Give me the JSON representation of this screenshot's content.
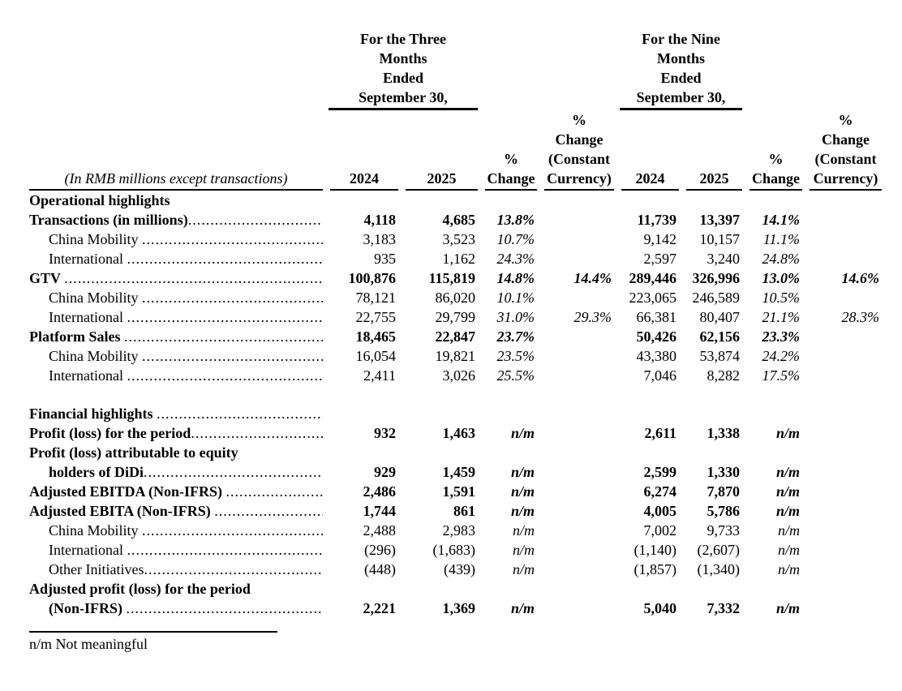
{
  "document": {
    "unit_note": "(In RMB millions except transactions)",
    "footnote": "n/m Not meaningful"
  },
  "table": {
    "group_headers": [
      {
        "lines": [
          "For the Three",
          "Months",
          "Ended",
          "September 30,"
        ]
      },
      {
        "lines": [
          "For the Nine",
          "Months",
          "Ended",
          "September 30,"
        ]
      }
    ],
    "value_col_keys": [
      "3m-2024",
      "3m-2025",
      "3m-pct-change",
      "3m-pct-change-constant-currency",
      "9m-2024",
      "9m-2025",
      "9m-pct-change",
      "9m-pct-change-constant-currency"
    ],
    "columns": [
      {
        "key": "3m-2024",
        "lines": [
          "2024"
        ]
      },
      {
        "key": "3m-2025",
        "lines": [
          "2025"
        ]
      },
      {
        "key": "3m-pct-change",
        "lines": [
          "%",
          "Change"
        ]
      },
      {
        "key": "3m-pct-change-constant-currency",
        "lines": [
          "%",
          "Change",
          "(Constant",
          "Currency)"
        ]
      },
      {
        "key": "9m-2024",
        "lines": [
          "2024"
        ]
      },
      {
        "key": "9m-2025",
        "lines": [
          "2025"
        ]
      },
      {
        "key": "9m-pct-change",
        "lines": [
          "%",
          "Change"
        ]
      },
      {
        "key": "9m-pct-change-constant-currency",
        "lines": [
          "%",
          "Change",
          "(Constant",
          "Currency)"
        ]
      }
    ],
    "rows": [
      {
        "label": "Operational highlights",
        "bold": true,
        "indent": 0,
        "dots": false,
        "values": [
          "",
          "",
          "",
          "",
          "",
          "",
          "",
          ""
        ]
      },
      {
        "label": "Transactions (in millions)",
        "bold": true,
        "indent": 0,
        "dots": true,
        "values": [
          "4,118",
          "4,685",
          "13.8%",
          "",
          "11,739",
          "13,397",
          "14.1%",
          ""
        ]
      },
      {
        "label": "China Mobility ",
        "bold": false,
        "indent": 1,
        "dots": true,
        "values": [
          "3,183",
          "3,523",
          "10.7%",
          "",
          "9,142",
          "10,157",
          "11.1%",
          ""
        ]
      },
      {
        "label": "International ",
        "bold": false,
        "indent": 1,
        "dots": true,
        "values": [
          "935",
          "1,162",
          "24.3%",
          "",
          "2,597",
          "3,240",
          "24.8%",
          ""
        ]
      },
      {
        "label": "GTV ",
        "bold": true,
        "indent": 0,
        "dots": true,
        "values": [
          "100,876",
          "115,819",
          "14.8%",
          "14.4%",
          "289,446",
          "326,996",
          "13.0%",
          "14.6%"
        ]
      },
      {
        "label": "China Mobility ",
        "bold": false,
        "indent": 1,
        "dots": true,
        "values": [
          "78,121",
          "86,020",
          "10.1%",
          "",
          "223,065",
          "246,589",
          "10.5%",
          ""
        ]
      },
      {
        "label": "International ",
        "bold": false,
        "indent": 1,
        "dots": true,
        "values": [
          "22,755",
          "29,799",
          "31.0%",
          "29.3%",
          "66,381",
          "80,407",
          "21.1%",
          "28.3%"
        ]
      },
      {
        "label": "Platform Sales ",
        "bold": true,
        "indent": 0,
        "dots": true,
        "values": [
          "18,465",
          "22,847",
          "23.7%",
          "",
          "50,426",
          "62,156",
          "23.3%",
          ""
        ]
      },
      {
        "label": "China Mobility ",
        "bold": false,
        "indent": 1,
        "dots": true,
        "values": [
          "16,054",
          "19,821",
          "23.5%",
          "",
          "43,380",
          "53,874",
          "24.2%",
          ""
        ]
      },
      {
        "label": "International ",
        "bold": false,
        "indent": 1,
        "dots": true,
        "values": [
          "2,411",
          "3,026",
          "25.5%",
          "",
          "7,046",
          "8,282",
          "17.5%",
          ""
        ]
      },
      {
        "spacer": true
      },
      {
        "label": "Financial highlights ",
        "bold": true,
        "indent": 0,
        "dots": true,
        "values": [
          "",
          "",
          "",
          "",
          "",
          "",
          "",
          ""
        ]
      },
      {
        "label": "Profit (loss) for the period",
        "bold": true,
        "indent": 0,
        "dots": true,
        "values": [
          "932",
          "1,463",
          "n/m",
          "",
          "2,611",
          "1,338",
          "n/m",
          ""
        ]
      },
      {
        "label": "Profit (loss) attributable to equity",
        "bold": true,
        "indent": 0,
        "dots": false,
        "values": [
          "",
          "",
          "",
          "",
          "",
          "",
          "",
          ""
        ]
      },
      {
        "label": "holders of DiDi",
        "bold": true,
        "indent": 1,
        "dots": true,
        "values": [
          "929",
          "1,459",
          "n/m",
          "",
          "2,599",
          "1,330",
          "n/m",
          ""
        ]
      },
      {
        "label": "Adjusted EBITDA (Non-IFRS) ",
        "bold": true,
        "indent": 0,
        "dots": true,
        "values": [
          "2,486",
          "1,591",
          "n/m",
          "",
          "6,274",
          "7,870",
          "n/m",
          ""
        ]
      },
      {
        "label": "Adjusted EBITA (Non-IFRS) ",
        "bold": true,
        "indent": 0,
        "dots": true,
        "values": [
          "1,744",
          "861",
          "n/m",
          "",
          "4,005",
          "5,786",
          "n/m",
          ""
        ]
      },
      {
        "label": "China Mobility ",
        "bold": false,
        "indent": 1,
        "dots": true,
        "values": [
          "2,488",
          "2,983",
          "n/m",
          "",
          "7,002",
          "9,733",
          "n/m",
          ""
        ]
      },
      {
        "label": "International ",
        "bold": false,
        "indent": 1,
        "dots": true,
        "values": [
          "(296)",
          "(1,683)",
          "n/m",
          "",
          "(1,140)",
          "(2,607)",
          "n/m",
          ""
        ]
      },
      {
        "label": "Other Initiatives",
        "bold": false,
        "indent": 1,
        "dots": true,
        "values": [
          "(448)",
          "(439)",
          "n/m",
          "",
          "(1,857)",
          "(1,340)",
          "n/m",
          ""
        ]
      },
      {
        "label": "Adjusted profit (loss) for the period",
        "bold": true,
        "indent": 0,
        "dots": false,
        "values": [
          "",
          "",
          "",
          "",
          "",
          "",
          "",
          ""
        ]
      },
      {
        "label": "(Non-IFRS) ",
        "bold": true,
        "indent": 1,
        "dots": true,
        "values": [
          "2,221",
          "1,369",
          "n/m",
          "",
          "5,040",
          "7,332",
          "n/m",
          ""
        ]
      }
    ]
  }
}
